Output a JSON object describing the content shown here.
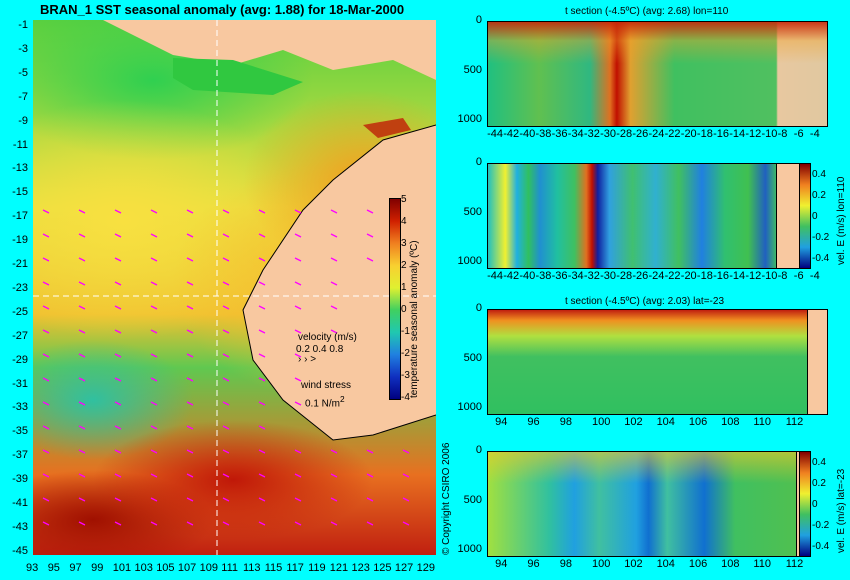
{
  "map": {
    "title": "BRAN_1  SST seasonal anomaly (avg: 1.88) for 18-Mar-2000",
    "yticks": [
      "-1",
      "-3",
      "-5",
      "-7",
      "-9",
      "-11",
      "-13",
      "-15",
      "-17",
      "-19",
      "-21",
      "-23",
      "-25",
      "-27",
      "-29",
      "-31",
      "-33",
      "-35",
      "-37",
      "-39",
      "-41",
      "-43",
      "-45"
    ],
    "xticks": [
      "93",
      "95",
      "97",
      "99",
      "101",
      "103",
      "105",
      "107",
      "109",
      "111",
      "113",
      "115",
      "117",
      "119",
      "121",
      "123",
      "125",
      "127",
      "129"
    ],
    "colorbar_label": "temperature seasonal anomaly (ºC)",
    "colorbar_ticks": [
      "5",
      "4",
      "3",
      "2",
      "1",
      "0",
      "-1",
      "-2",
      "-3",
      "-4"
    ],
    "velocity_label": "velocity (m/s)",
    "velocity_scale": "0.2 0.4 0.8",
    "wind_label": "wind stress",
    "wind_scale": "0.1 N/m",
    "wind_scale_sup": "2",
    "copyright": "© Copyright CSIRO 2006",
    "colors": {
      "land": "#f8c8a0",
      "background": "#00ffff",
      "crosshair": "#ffffff",
      "vectors": "#ff00ff"
    }
  },
  "panels": [
    {
      "title": "t section (-4.5ºC) (avg: 2.68) lon=110",
      "xticks": [
        "-44",
        "-42",
        "-40",
        "-38",
        "-36",
        "-34",
        "-32",
        "-30",
        "-28",
        "-26",
        "-24",
        "-22",
        "-20",
        "-18",
        "-16",
        "-14",
        "-12",
        "-10",
        "-8",
        "-6",
        "-4"
      ],
      "yticks": [
        "0",
        "500",
        "1000"
      ],
      "side_label": ""
    },
    {
      "title": "",
      "xticks": [
        "-44",
        "-42",
        "-40",
        "-38",
        "-36",
        "-34",
        "-32",
        "-30",
        "-28",
        "-26",
        "-24",
        "-22",
        "-20",
        "-18",
        "-16",
        "-14",
        "-12",
        "-10",
        "-8",
        "-6",
        "-4"
      ],
      "yticks": [
        "0",
        "500",
        "1000"
      ],
      "side_label": "vel. E (m/s) lon=110",
      "cb_ticks": [
        "0.4",
        "0.2",
        "0",
        "-0.2",
        "-0.4"
      ]
    },
    {
      "title": "t section (-4.5ºC) (avg: 2.03) lat=-23",
      "xticks": [
        "94",
        "96",
        "98",
        "100",
        "102",
        "104",
        "106",
        "108",
        "110",
        "112"
      ],
      "yticks": [
        "0",
        "500",
        "1000"
      ],
      "side_label": ""
    },
    {
      "title": "",
      "xticks": [
        "94",
        "96",
        "98",
        "100",
        "102",
        "104",
        "106",
        "108",
        "110",
        "112"
      ],
      "yticks": [
        "0",
        "500",
        "1000"
      ],
      "side_label": "vel. E (m/s) lat=-23",
      "cb_ticks": [
        "0.4",
        "0.2",
        "0",
        "-0.2",
        "-0.4"
      ]
    }
  ],
  "chart_data": [
    {
      "type": "heatmap",
      "title": "BRAN_1  SST seasonal anomaly (avg: 1.88) for 18-Mar-2000",
      "xlabel": "",
      "ylabel": "",
      "x_range": [
        93,
        130
      ],
      "y_range": [
        -45,
        0
      ],
      "colorbar_range": [
        -4,
        5
      ],
      "colorbar_label": "temperature seasonal anomaly (ºC)",
      "crosshair": {
        "lon": 110,
        "lat": -23
      },
      "grid": false
    },
    {
      "type": "heatmap",
      "title": "t section (-4.5ºC) (avg: 2.68) lon=110",
      "x_range": [
        -45,
        -3
      ],
      "y_range": [
        1050,
        0
      ],
      "yticks": [
        0,
        500,
        1000
      ]
    },
    {
      "type": "heatmap",
      "title": "",
      "x_range": [
        -45,
        -3
      ],
      "y_range": [
        1050,
        0
      ],
      "colorbar_range": [
        -0.45,
        0.45
      ],
      "colorbar_label": "vel. E (m/s) lon=110"
    },
    {
      "type": "heatmap",
      "title": "t section (-4.5ºC) (avg: 2.03) lat=-23",
      "x_range": [
        93,
        114
      ],
      "y_range": [
        1050,
        0
      ],
      "yticks": [
        0,
        500,
        1000
      ]
    },
    {
      "type": "heatmap",
      "title": "",
      "x_range": [
        93,
        114
      ],
      "y_range": [
        1050,
        0
      ],
      "colorbar_range": [
        -0.45,
        0.45
      ],
      "colorbar_label": "vel. E (m/s) lat=-23"
    }
  ]
}
